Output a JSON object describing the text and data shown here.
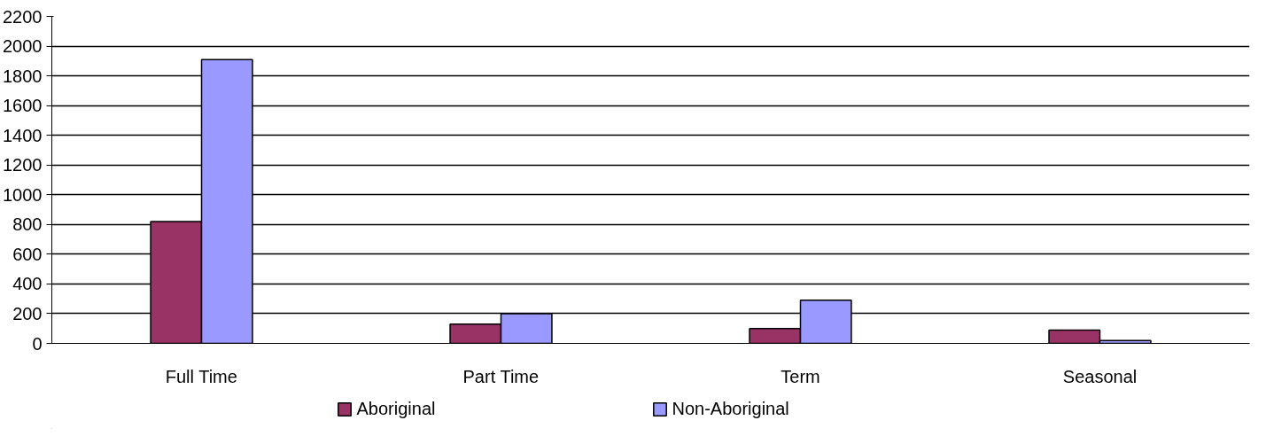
{
  "chart_data": {
    "type": "bar",
    "categories": [
      "Full Time",
      "Part Time",
      "Term",
      "Seasonal"
    ],
    "series": [
      {
        "name": "Aboriginal",
        "color": "#993366",
        "values": [
          820,
          130,
          100,
          90
        ]
      },
      {
        "name": "Non-Aboriginal",
        "color": "#9999ff",
        "values": [
          1910,
          200,
          290,
          20
        ]
      }
    ],
    "ylim": [
      0,
      2200
    ],
    "yticks": [
      0,
      200,
      400,
      600,
      800,
      1000,
      1200,
      1400,
      1600,
      1800,
      2000,
      2200
    ],
    "grid": "y",
    "legend": "bottom"
  }
}
